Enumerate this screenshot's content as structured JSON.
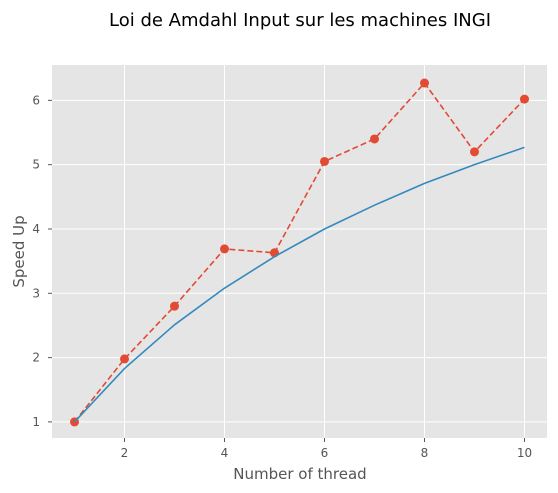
{
  "chart_data": {
    "type": "line",
    "title": "Loi de Amdahl Input sur les machines INGI",
    "xlabel": "Number of thread",
    "ylabel": "Speed Up",
    "xlim": [
      0.55,
      10.45
    ],
    "ylim": [
      0.75,
      6.55
    ],
    "xticks": [
      2,
      4,
      6,
      8,
      10
    ],
    "yticks": [
      1,
      2,
      3,
      4,
      5,
      6
    ],
    "grid": true,
    "series": [
      {
        "style": "dashed-markers",
        "color": "#E24A33",
        "x": [
          1,
          2,
          3,
          4,
          5,
          6,
          7,
          8,
          9,
          10
        ],
        "y": [
          1.0,
          1.98,
          2.8,
          3.69,
          3.63,
          5.05,
          5.4,
          6.27,
          5.2,
          6.02
        ]
      },
      {
        "style": "solid",
        "color": "#348ABD",
        "x": [
          1,
          2,
          3,
          4,
          5,
          6,
          7,
          8,
          9,
          10
        ],
        "y": [
          1.0,
          1.83,
          2.51,
          3.08,
          3.57,
          4.0,
          4.37,
          4.71,
          5.0,
          5.27
        ]
      }
    ]
  }
}
